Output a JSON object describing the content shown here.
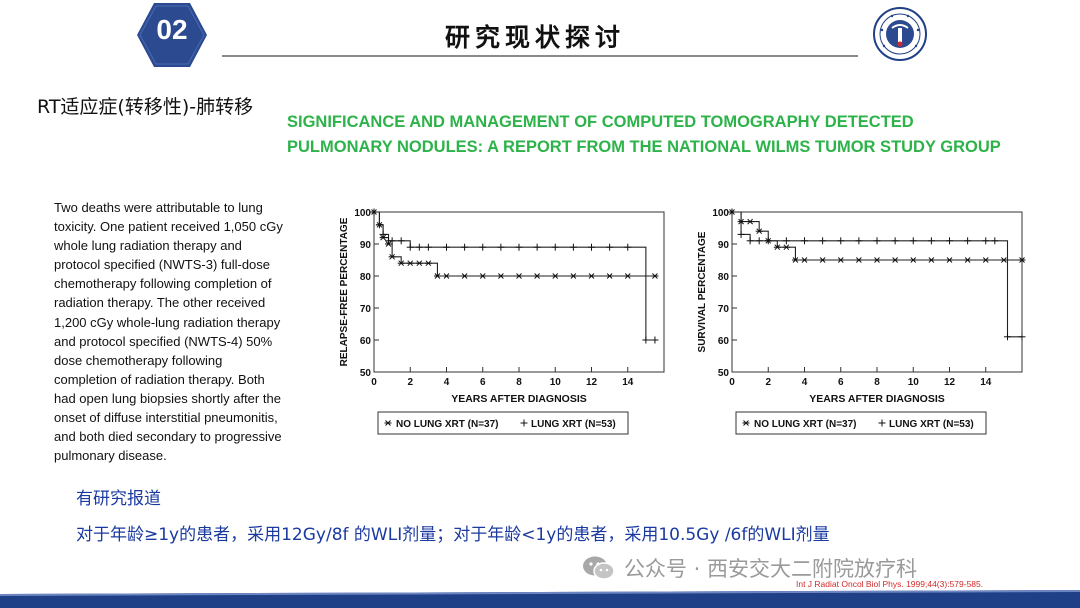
{
  "header": {
    "section_number": "02",
    "section_title": "研究现状探讨",
    "logo": "university-seal-logo",
    "badge_color": "#2c4a8f"
  },
  "indication": "RT适应症(转移性)-肺转移",
  "paper_title": [
    "SIGNIFICANCE AND MANAGEMENT OF COMPUTED TOMOGRAPHY DETECTED",
    "PULMONARY NODULES: A REPORT FROM THE NATIONAL WILMS TUMOR STUDY GROUP"
  ],
  "body_text": [
    "Two deaths were attributable to lung",
    "toxicity. One patient received 1,050 cGy",
    "whole lung radiation  therapy and",
    "protocol specified (NWTS-3) full-dose",
    "chemotherapy following completion of",
    "radiation therapy. The other received",
    "1,200 cGy whole-lung radiation therapy",
    "and protocol specified (NWTS-4) 50%",
    "dose chemotherapy following",
    "completion of radiation therapy. Both",
    "had open lung biopsies shortly after the",
    "onset of diffuse interstitial pneumonitis,",
    "and both died secondary to progressive",
    "pulmonary disease."
  ],
  "chart_data": [
    {
      "type": "line",
      "xlabel": "YEARS AFTER DIAGNOSIS",
      "ylabel": "RELAPSE-FREE PERCENTAGE",
      "xlim": [
        0,
        16
      ],
      "ylim": [
        50,
        100
      ],
      "xticks": [
        "0",
        "2",
        "4",
        "6",
        "8",
        "10",
        "12",
        "14"
      ],
      "yticks": [
        "50",
        "60",
        "70",
        "80",
        "90",
        "100"
      ],
      "series": [
        {
          "name": "NO LUNG XRT (N=37)",
          "marker": "*",
          "x": [
            0,
            0.3,
            0.5,
            0.8,
            1.0,
            1.5,
            2.0,
            2.5,
            3.0,
            3.5,
            4,
            5,
            6,
            7,
            8,
            9,
            10,
            11,
            12,
            13,
            14,
            15.5
          ],
          "y": [
            100,
            96,
            92,
            90,
            86,
            84,
            84,
            84,
            84,
            80,
            80,
            80,
            80,
            80,
            80,
            80,
            80,
            80,
            80,
            80,
            80,
            80
          ]
        },
        {
          "name": "LUNG XRT (N=53)",
          "marker": "+",
          "x": [
            0,
            0.3,
            0.5,
            0.8,
            1.0,
            1.5,
            2.0,
            2.5,
            3,
            4,
            5,
            6,
            7,
            8,
            9,
            10,
            11,
            12,
            13,
            14,
            15,
            15.5
          ],
          "y": [
            100,
            96,
            93,
            91,
            91,
            91,
            89,
            89,
            89,
            89,
            89,
            89,
            89,
            89,
            89,
            89,
            89,
            89,
            89,
            89,
            60,
            60
          ]
        }
      ],
      "legend": [
        "NO LUNG XRT (N=37)",
        "LUNG XRT (N=53)"
      ],
      "legend_position": "bottom"
    },
    {
      "type": "line",
      "xlabel": "YEARS AFTER DIAGNOSIS",
      "ylabel": "SURVIVAL PERCENTAGE",
      "xlim": [
        0,
        16
      ],
      "ylim": [
        50,
        100
      ],
      "xticks": [
        "0",
        "2",
        "4",
        "6",
        "8",
        "10",
        "12",
        "14"
      ],
      "yticks": [
        "50",
        "60",
        "70",
        "80",
        "90",
        "100"
      ],
      "series": [
        {
          "name": "NO LUNG XRT (N=37)",
          "marker": "*",
          "x": [
            0,
            0.5,
            1.0,
            1.5,
            2.0,
            2.5,
            3.0,
            3.5,
            4,
            5,
            6,
            7,
            8,
            9,
            10,
            11,
            12,
            13,
            14,
            15,
            16
          ],
          "y": [
            100,
            97,
            97,
            94,
            91,
            89,
            89,
            85,
            85,
            85,
            85,
            85,
            85,
            85,
            85,
            85,
            85,
            85,
            85,
            85,
            85
          ]
        },
        {
          "name": "LUNG XRT (N=53)",
          "marker": "+",
          "x": [
            0,
            0.5,
            1.0,
            1.5,
            2,
            3,
            4,
            5,
            6,
            7,
            8,
            9,
            10,
            11,
            12,
            13,
            14,
            14.5,
            15.2,
            16
          ],
          "y": [
            100,
            93,
            91,
            91,
            91,
            91,
            91,
            91,
            91,
            91,
            91,
            91,
            91,
            91,
            91,
            91,
            91,
            91,
            61,
            61
          ]
        }
      ],
      "legend": [
        "NO LUNG XRT (N=37)",
        "LUNG XRT (N=53)"
      ],
      "legend_position": "bottom"
    }
  ],
  "reported_label": "有研究报道",
  "dose_statement": "对于年龄≥1y的患者，采用12Gy/8f 的WLI剂量；对于年龄<1y的患者，采用10.5Gy /6f的WLI剂量",
  "watermark": {
    "icon": "wechat-icon",
    "text": "公众号 · 西安交大二附院放疗科"
  },
  "citation": "Int J Radiat Oncol Biol Phys. 1999;44(3):579-585.",
  "colors": {
    "title_green": "#2db34a",
    "statement_blue": "#1a3aa0",
    "citation_red": "#d12a2a",
    "bar_navy": "#1f3f86"
  }
}
